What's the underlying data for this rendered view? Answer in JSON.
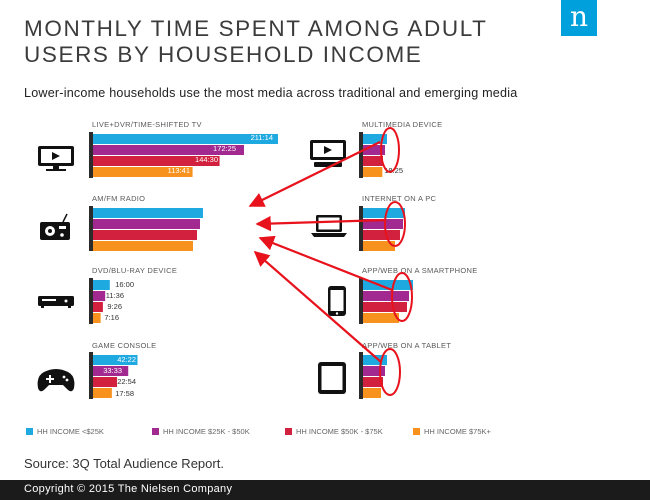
{
  "header": {
    "title": "MONTHLY TIME SPENT AMONG ADULT USERS BY HOUSEHOLD INCOME",
    "subtitle": "Lower-income households use the most media across traditional and emerging media",
    "logo_letter": "n"
  },
  "source": "Source: 3Q Total Audience Report.",
  "footer": {
    "copyright": "Copyright © 2015 The Nielsen Company"
  },
  "colors": {
    "lt25k": "#1fa9e1",
    "25k_50k": "#a1298f",
    "50k_75k": "#d1213f",
    "gt75k": "#f7921e",
    "panel_dark": "#2b2b2b",
    "arrow": "#e8121c"
  },
  "chart_data": {
    "type": "bar",
    "orientation": "horizontal",
    "unit": "hours:minutes per month",
    "legend_position": "bottom",
    "series_names": [
      "HH INCOME <$25K",
      "HH INCOME $25K - $50K",
      "HH INCOME $50K - $75K",
      "HH INCOME $75K+"
    ],
    "panels": [
      {
        "id": "tv",
        "label": "LIVE+DVR/TIME-SHIFTED TV",
        "icon": "tv-icon",
        "values": [
          211.23,
          172.42,
          144.5,
          113.68
        ],
        "labels": [
          "211:14",
          "172:25",
          "144:30",
          "113:41"
        ]
      },
      {
        "id": "radio",
        "label": "AM/FM RADIO",
        "icon": "radio-icon",
        "values": [
          null,
          null,
          null,
          null
        ],
        "labels": [
          "",
          "",
          "",
          ""
        ]
      },
      {
        "id": "dvd",
        "label": "DVD/BLU-RAY DEVICE",
        "icon": "dvd-player-icon",
        "values": [
          16.0,
          11.6,
          9.43,
          7.27
        ],
        "labels": [
          "16:00",
          "11:36",
          "9:26",
          "7:16"
        ]
      },
      {
        "id": "console",
        "label": "GAME CONSOLE",
        "icon": "game-controller-icon",
        "values": [
          42.37,
          33.55,
          22.9,
          17.97
        ],
        "labels": [
          "42:22",
          "33:33",
          "22:54",
          "17:58"
        ]
      },
      {
        "id": "multimedia",
        "label": "MULTIMEDIA DEVICE",
        "icon": "multimedia-device-icon",
        "values": [
          null,
          null,
          null,
          18.42
        ],
        "labels": [
          "",
          "",
          "",
          "18:25"
        ]
      },
      {
        "id": "pc",
        "label": "INTERNET ON A PC",
        "icon": "laptop-icon",
        "values": [
          null,
          null,
          null,
          null
        ],
        "labels": [
          "",
          "",
          "",
          ""
        ]
      },
      {
        "id": "smartphone",
        "label": "APP/WEB ON A SMARTPHONE",
        "icon": "smartphone-icon",
        "values": [
          null,
          null,
          null,
          null
        ],
        "labels": [
          "",
          "",
          "",
          ""
        ]
      },
      {
        "id": "tablet",
        "label": "APP/WEB ON A TABLET",
        "icon": "tablet-icon",
        "values": [
          null,
          null,
          null,
          null
        ],
        "labels": [
          "",
          "",
          "",
          ""
        ]
      }
    ],
    "annotations": "red circles over the obscured values of the right-hand panels, with red arrows pointing toward the AM/FM RADIO bars"
  }
}
